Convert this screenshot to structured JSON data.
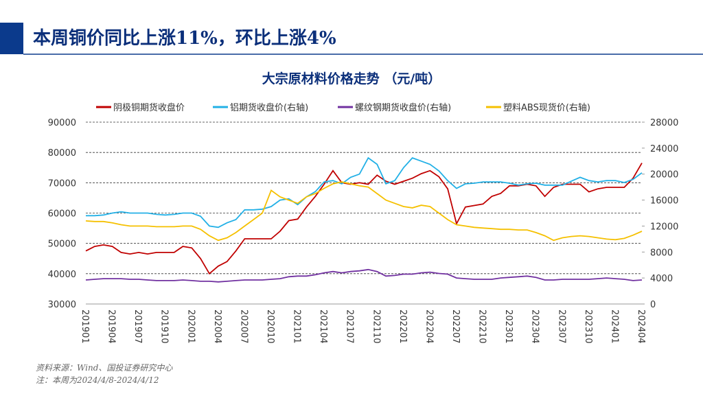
{
  "header": {
    "title": "本周铜价同比上涨11%，环比上涨4%"
  },
  "chart_data": {
    "type": "line",
    "title": "大宗原材料价格走势 （元/吨）",
    "categories": [
      "201901",
      null,
      null,
      "201904",
      null,
      null,
      "201907",
      null,
      null,
      "201910",
      null,
      null,
      "202001",
      null,
      null,
      "202004",
      null,
      null,
      "202007",
      null,
      null,
      "202010",
      null,
      null,
      "202101",
      null,
      null,
      "202104",
      null,
      null,
      "202107",
      null,
      null,
      "202110",
      null,
      null,
      "202201",
      null,
      null,
      "202204",
      null,
      null,
      "202207",
      null,
      null,
      "202210",
      null,
      null,
      "202301",
      null,
      null,
      "202304",
      null,
      null,
      "202307",
      null,
      null,
      "202310",
      null,
      null,
      "202401",
      null,
      null,
      "202404"
    ],
    "series": [
      {
        "name": "阴极铜期货收盘价",
        "color": "#c00000",
        "values": [
          47500,
          49000,
          49500,
          49000,
          47000,
          46500,
          47000,
          46500,
          47000,
          47000,
          47000,
          49000,
          48500,
          45000,
          40000,
          42500,
          44000,
          47500,
          51500,
          51500,
          51500,
          51500,
          54000,
          57500,
          58000,
          62000,
          65500,
          69500,
          74000,
          70000,
          69500,
          70000,
          69500,
          72500,
          70500,
          69500,
          70500,
          71500,
          73000,
          74000,
          72000,
          68000,
          56500,
          62000,
          62500,
          63000,
          65500,
          66500,
          69000,
          69000,
          69500,
          69000,
          65500,
          68500,
          69500,
          69500,
          69500,
          67000,
          68000,
          68500,
          68500,
          68500,
          71500,
          76500
        ]
      },
      {
        "name": "铝期货收盘价(右轴)",
        "color": "#22b0e6",
        "axis": "y2",
        "values": [
          13600,
          13600,
          13700,
          14000,
          14200,
          14000,
          14000,
          14000,
          13800,
          13700,
          13800,
          14000,
          14000,
          13500,
          12000,
          11800,
          12500,
          13000,
          14500,
          14500,
          14600,
          15000,
          16000,
          16200,
          15300,
          16500,
          17300,
          18800,
          19000,
          18500,
          19500,
          20000,
          22500,
          21500,
          18500,
          19000,
          21000,
          22500,
          22000,
          21500,
          20500,
          19000,
          17800,
          18500,
          18600,
          18800,
          18800,
          18800,
          18600,
          18300,
          18500,
          18600,
          18300,
          18300,
          18300,
          18900,
          19500,
          19000,
          18800,
          19000,
          19000,
          18700,
          19200,
          20200
        ]
      },
      {
        "name": "螺纹钢期货收盘价(右轴)",
        "color": "#7030a0",
        "axis": "y2",
        "values": [
          3700,
          3800,
          3900,
          3900,
          3900,
          3800,
          3800,
          3700,
          3600,
          3600,
          3600,
          3700,
          3600,
          3500,
          3500,
          3400,
          3500,
          3600,
          3700,
          3700,
          3700,
          3800,
          3900,
          4200,
          4300,
          4300,
          4500,
          4800,
          5000,
          4800,
          5000,
          5100,
          5300,
          5000,
          4300,
          4400,
          4600,
          4600,
          4800,
          4900,
          4700,
          4600,
          4000,
          3900,
          3800,
          3800,
          3800,
          4000,
          4100,
          4200,
          4300,
          4100,
          3700,
          3700,
          3800,
          3800,
          3800,
          3800,
          3900,
          4000,
          3900,
          3800,
          3600,
          3700
        ]
      },
      {
        "name": "塑料ABS现货价(右轴)",
        "color": "#f5c000",
        "axis": "y2",
        "values": [
          12800,
          12700,
          12700,
          12500,
          12200,
          12000,
          12000,
          12000,
          11900,
          11900,
          11900,
          12000,
          12000,
          11500,
          10500,
          9800,
          10200,
          11000,
          12000,
          13000,
          14000,
          17500,
          16500,
          16000,
          15500,
          16500,
          17000,
          17800,
          18500,
          18800,
          18500,
          18200,
          18000,
          17000,
          16000,
          15500,
          15000,
          14800,
          15200,
          15000,
          14000,
          13000,
          12200,
          12000,
          11800,
          11700,
          11600,
          11500,
          11500,
          11400,
          11400,
          11000,
          10500,
          9800,
          10200,
          10400,
          10500,
          10400,
          10200,
          10000,
          9900,
          10100,
          10600,
          11200
        ]
      }
    ],
    "ylim": [
      30000,
      90000
    ],
    "yticks": [
      30000,
      40000,
      50000,
      60000,
      70000,
      80000,
      90000
    ],
    "y2lim": [
      0,
      28000
    ],
    "y2ticks": [
      0,
      4000,
      8000,
      12000,
      16000,
      20000,
      24000,
      28000
    ],
    "grid": true
  },
  "notes": {
    "source": "资料来源：Wind、国投证券研究中心",
    "note": "注：本周为2024/4/8-2024/4/12"
  }
}
